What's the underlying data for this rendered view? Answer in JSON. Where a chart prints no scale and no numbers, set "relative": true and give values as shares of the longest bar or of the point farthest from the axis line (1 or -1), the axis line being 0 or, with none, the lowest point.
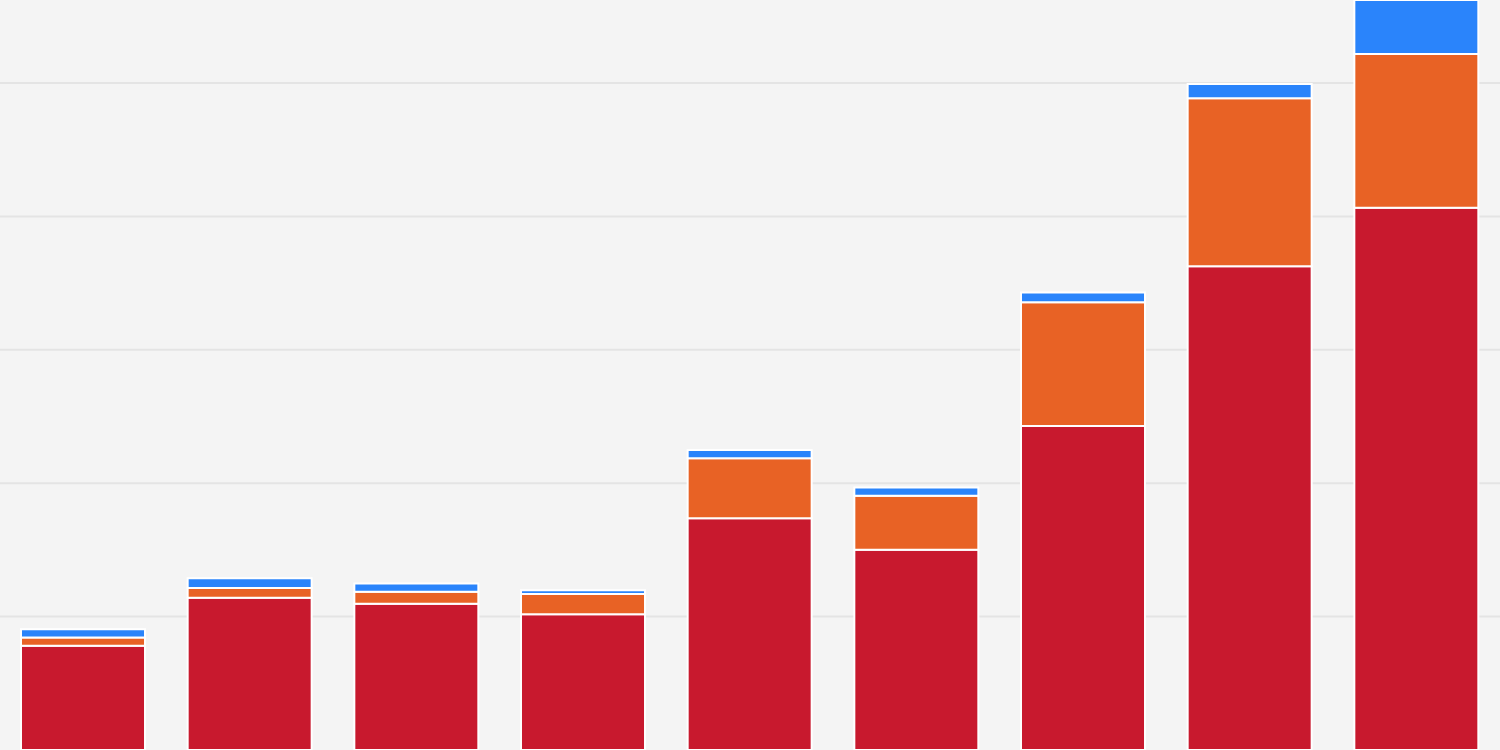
{
  "chart_data": {
    "type": "bar",
    "stacked": true,
    "relative": true,
    "grid": "y",
    "categories": [
      null,
      null,
      null,
      null,
      null,
      null,
      null,
      null,
      null
    ],
    "series": [
      {
        "color": "#c8192e",
        "values": [
          0.139,
          0.203,
          0.195,
          0.181,
          0.309,
          0.267,
          0.432,
          0.645,
          0.723
        ]
      },
      {
        "color": "#e86225",
        "values": [
          0.011,
          0.013,
          0.016,
          0.027,
          0.08,
          0.072,
          0.165,
          0.224,
          0.205
        ]
      },
      {
        "color": "#2a84fb",
        "values": [
          0.011,
          0.013,
          0.011,
          0.005,
          0.011,
          0.011,
          0.013,
          0.019,
          0.072
        ]
      }
    ]
  }
}
